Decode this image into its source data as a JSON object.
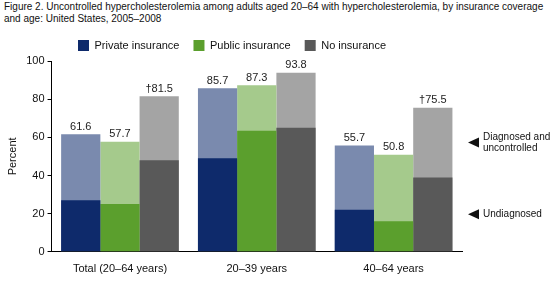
{
  "chart_data": {
    "type": "bar",
    "title": "Figure 2. Uncontrolled hypercholesterolemia among adults aged 20–64 with hypercholesterolemia, by insurance coverage and age: United States, 2005–2008",
    "categories": [
      "Total (20–64 years)",
      "20–39 years",
      "40–64 years"
    ],
    "y_label": "Percent",
    "series": [
      {
        "name": "Private insurance",
        "color": "#0e2a6b",
        "values": [
          61.6,
          85.7,
          55.7
        ],
        "value_labels": [
          "61.6",
          "85.7",
          "55.7"
        ],
        "undiagnosed": [
          27,
          49,
          22
        ]
      },
      {
        "name": "Public insurance",
        "color": "#5b9f2d",
        "values": [
          57.7,
          87.3,
          50.8
        ],
        "value_labels": [
          "57.7",
          "87.3",
          "50.8"
        ],
        "undiagnosed": [
          25,
          63.5,
          16
        ]
      },
      {
        "name": "No insurance",
        "color": "#595959",
        "values": [
          81.5,
          93.8,
          75.5
        ],
        "value_labels": [
          "†81.5",
          "93.8",
          "†75.5"
        ],
        "undiagnosed": [
          48,
          65,
          39
        ]
      }
    ],
    "annotations": [
      "Diagnosed and uncontrolled",
      "Undiagnosed"
    ],
    "ylim": [
      0,
      100
    ],
    "yticks": [
      0,
      20,
      40,
      60,
      80,
      100
    ],
    "grid": false,
    "data_labels": true,
    "legend": "top"
  }
}
